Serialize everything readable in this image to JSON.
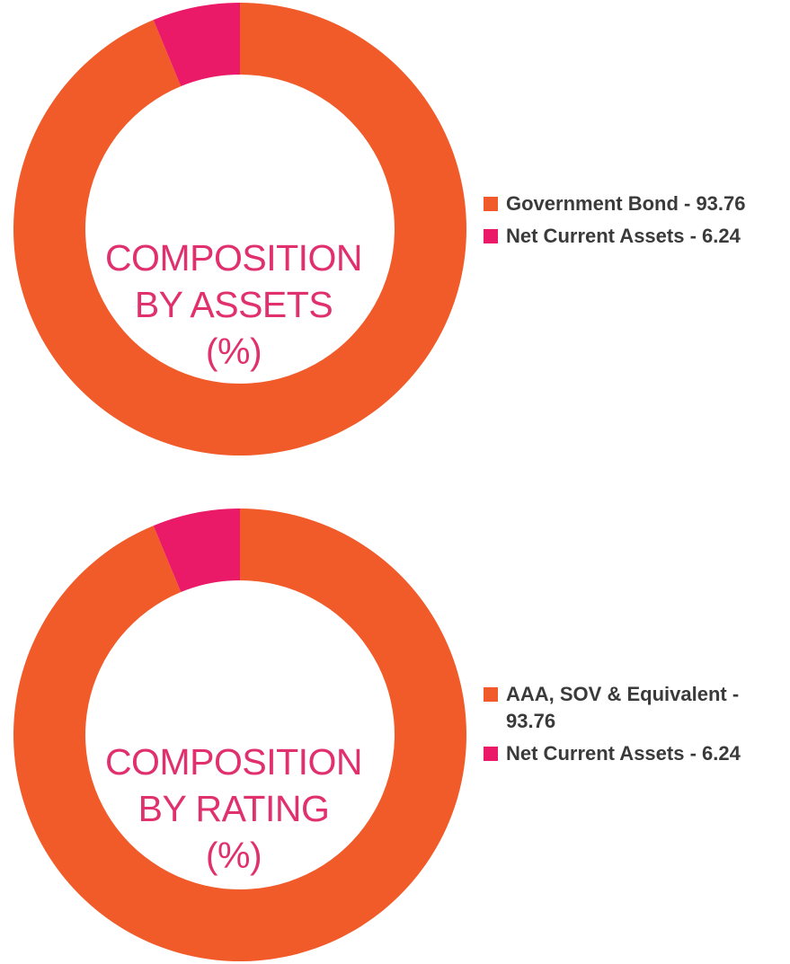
{
  "colors": {
    "government_bond": "#f15a29",
    "net_current_assets": "#ea1a68",
    "center_text": "#e0306e",
    "legend_text": "#3a3a3a"
  },
  "chart_data": [
    {
      "type": "pie",
      "title": "COMPOSITION BY ASSETS (%)",
      "title_lines": [
        "COMPOSITION",
        "BY ASSETS",
        "(%)"
      ],
      "slices": [
        {
          "label": "Government Bond - 93.76",
          "value": 93.76,
          "color": "#f15a29"
        },
        {
          "label": "Net Current Assets - 6.24",
          "value": 6.24,
          "color": "#ea1a68"
        }
      ],
      "legend_position": "right"
    },
    {
      "type": "pie",
      "title": "COMPOSITION BY RATING (%)",
      "title_lines": [
        "COMPOSITION",
        "BY RATING",
        "(%)"
      ],
      "slices": [
        {
          "label": "AAA, SOV & Equivalent - 93.76",
          "value": 93.76,
          "color": "#f15a29"
        },
        {
          "label": "Net Current Assets - 6.24",
          "value": 6.24,
          "color": "#ea1a68"
        }
      ],
      "legend_position": "right"
    }
  ]
}
